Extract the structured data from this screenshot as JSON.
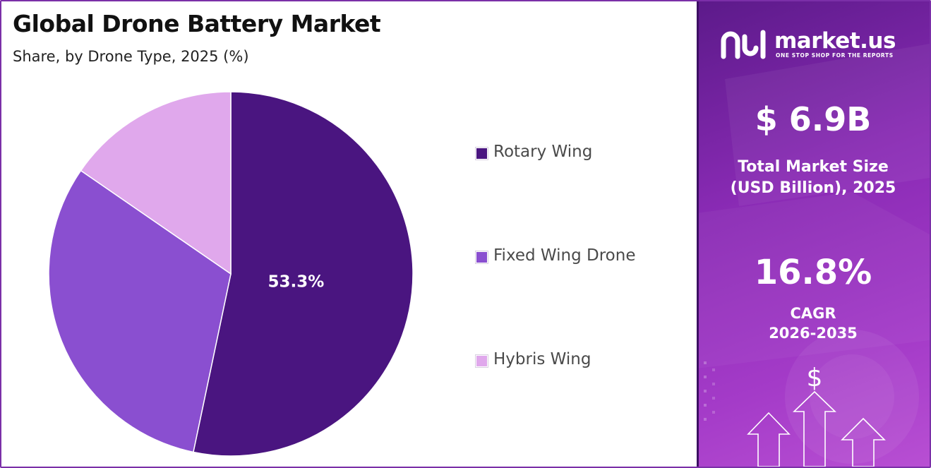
{
  "chart_data": {
    "type": "pie",
    "title": "Global Drone Battery Market",
    "subtitle": "Share, by Drone Type, 2025 (%)",
    "categories": [
      "Rotary Wing",
      "Fixed Wing Drone",
      "Hybris Wing"
    ],
    "values": [
      53.3,
      31.3,
      15.4
    ],
    "colors": [
      "#4a1580",
      "#8a4fd0",
      "#e0a8ec"
    ],
    "data_labels": [
      "53.3%",
      "",
      ""
    ],
    "legend_position": "right"
  },
  "brand": {
    "name": "market.us",
    "tagline": "ONE STOP SHOP FOR THE REPORTS"
  },
  "stats": {
    "market_size_value": "$ 6.9B",
    "market_size_label_line1": "Total Market Size",
    "market_size_label_line2": "(USD Billion), 2025",
    "cagr_value": "16.8%",
    "cagr_label_line1": "CAGR",
    "cagr_label_line2": "2026-2035"
  },
  "icons": {
    "logo": "market-us-logo-icon",
    "growth": "dollar-growth-arrows-icon"
  }
}
